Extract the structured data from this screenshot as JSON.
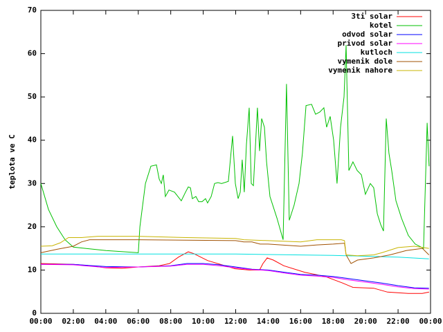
{
  "chart_data": {
    "type": "line",
    "ylabel": "teplota ve C",
    "xlim": [
      0,
      24
    ],
    "xticks": [
      {
        "value": 0,
        "label": "00:00"
      },
      {
        "value": 2,
        "label": "02:00"
      },
      {
        "value": 4,
        "label": "04:00"
      },
      {
        "value": 6,
        "label": "06:00"
      },
      {
        "value": 8,
        "label": "08:00"
      },
      {
        "value": 10,
        "label": "10:00"
      },
      {
        "value": 12,
        "label": "12:00"
      },
      {
        "value": 14,
        "label": "14:00"
      },
      {
        "value": 16,
        "label": "16:00"
      },
      {
        "value": 18,
        "label": "18:00"
      },
      {
        "value": 20,
        "label": "20:00"
      },
      {
        "value": 22,
        "label": "22:00"
      },
      {
        "value": 24,
        "label": "00:00"
      }
    ],
    "ylim": [
      0,
      70
    ],
    "yticks": [
      0,
      10,
      20,
      30,
      40,
      50,
      60,
      70
    ],
    "grid": false,
    "legend": "top-right",
    "series": [
      {
        "name": "3ti solar",
        "color": "#ff0000",
        "x": [
          0,
          2,
          3.02,
          4.01,
          5,
          6,
          7.29,
          7.93,
          8.48,
          9.08,
          9.42,
          10.27,
          11.34,
          11.98,
          12.83,
          13.47,
          13.68,
          13.94,
          14.32,
          14.96,
          16.24,
          17.52,
          18.58,
          19.22,
          20.5,
          21.35,
          22.63,
          23.49,
          23.91
        ],
        "values": [
          11.5,
          11.3,
          11,
          10.5,
          10.4,
          10.7,
          11,
          11.5,
          13,
          14.2,
          13.8,
          12.2,
          11,
          10.3,
          10,
          10,
          11.5,
          12.8,
          12.3,
          11,
          9.5,
          8.5,
          7,
          6,
          5.8,
          4.9,
          4.6,
          4.6,
          4.9
        ]
      },
      {
        "name": "kotel",
        "color": "#00c000",
        "x": [
          0,
          0.47,
          0.98,
          1.49,
          2,
          4.01,
          6,
          6.1,
          6.44,
          6.78,
          7.12,
          7.29,
          7.42,
          7.54,
          7.67,
          7.89,
          8.23,
          8.44,
          8.65,
          8.91,
          9.08,
          9.21,
          9.33,
          9.55,
          9.72,
          9.93,
          10.14,
          10.27,
          10.49,
          10.7,
          10.91,
          11.13,
          11.55,
          11.81,
          11.98,
          12.15,
          12.28,
          12.4,
          12.53,
          12.66,
          12.83,
          12.96,
          13.09,
          13.34,
          13.47,
          13.6,
          13.77,
          13.9,
          14.11,
          14.54,
          14.92,
          15.13,
          15.3,
          15.6,
          15.9,
          16.11,
          16.33,
          16.67,
          16.92,
          17.18,
          17.43,
          17.6,
          17.82,
          18.03,
          18.24,
          18.46,
          18.67,
          18.8,
          18.97,
          19.22,
          19.48,
          19.74,
          19.99,
          20.29,
          20.5,
          20.72,
          20.93,
          21.1,
          21.27,
          21.44,
          21.61,
          21.87,
          22.21,
          22.63,
          23.06,
          23.57,
          23.79,
          23.91
        ],
        "values": [
          30,
          24,
          20,
          17,
          15.3,
          14.5,
          14,
          20,
          30,
          34,
          34.3,
          31,
          30,
          32,
          27,
          28.5,
          28,
          27,
          26,
          28,
          29.2,
          29,
          26.5,
          27,
          25.8,
          25.8,
          26.5,
          25.5,
          27,
          30,
          30.2,
          30,
          30.5,
          41,
          30,
          26.5,
          28,
          35.5,
          28,
          39,
          47.5,
          30,
          29.5,
          47.5,
          37.5,
          45,
          43,
          35,
          27,
          22,
          17,
          53,
          21.5,
          25,
          30,
          37,
          48,
          48.3,
          46,
          46.5,
          47.5,
          43,
          45.5,
          40,
          30,
          43,
          50,
          62,
          33,
          35,
          33,
          32,
          27.5,
          30,
          29,
          23,
          20.5,
          19,
          45,
          37,
          33,
          26,
          22,
          18,
          16,
          15,
          44,
          34
        ]
      },
      {
        "name": "odvod solar",
        "color": "#0000ff",
        "x": [
          0,
          2,
          4,
          6,
          8,
          9,
          10,
          11,
          12,
          13,
          14,
          15,
          16,
          17,
          18,
          19,
          20,
          21,
          22,
          23,
          23.9
        ],
        "values": [
          11.3,
          11.3,
          10.8,
          10.7,
          11,
          11.5,
          11.5,
          11.2,
          10.7,
          10.2,
          10,
          9.5,
          9,
          8.8,
          8.5,
          8,
          7.5,
          7,
          6.4,
          5.9,
          5.8
        ]
      },
      {
        "name": "privod solar",
        "color": "#ff00ff",
        "x": [
          0,
          2,
          4,
          6,
          8,
          9,
          10,
          11,
          12,
          13,
          14,
          15,
          16,
          17,
          18,
          19,
          20,
          21,
          22,
          23,
          23.9
        ],
        "values": [
          11.3,
          11.2,
          10.6,
          10.7,
          10.9,
          11.3,
          11.3,
          11,
          10.5,
          10.1,
          9.9,
          9.3,
          8.8,
          8.6,
          8.3,
          7.7,
          7.2,
          6.7,
          6.1,
          5.7,
          5.6
        ]
      },
      {
        "name": "kutloch",
        "color": "#00e0e0",
        "x": [
          0,
          6,
          12,
          18,
          22,
          23.9
        ],
        "values": [
          13.7,
          13.7,
          13.7,
          13.4,
          13,
          12.6
        ]
      },
      {
        "name": "vymenik dole",
        "color": "#a05000",
        "x": [
          0,
          1,
          2,
          2.5,
          3,
          6,
          12,
          12.5,
          13,
          13.5,
          14,
          16,
          17,
          18,
          18.7,
          18.8,
          19.1,
          19.5,
          20.5,
          21.5,
          22.5,
          23.5,
          23.9
        ],
        "values": [
          14,
          14.8,
          15.5,
          16.5,
          17,
          17,
          16.8,
          16.5,
          16.5,
          16,
          16,
          15.5,
          15.8,
          16,
          16.2,
          13.5,
          11.5,
          12.3,
          12.8,
          13.5,
          14.5,
          15,
          13.5
        ]
      },
      {
        "name": "vymenik nahore",
        "color": "#c8b400",
        "x": [
          0,
          0.7,
          1.2,
          1.7,
          2.5,
          3.5,
          6,
          9,
          12,
          12.5,
          14,
          16,
          17,
          18.5,
          18.7,
          18.8,
          19.5,
          20.5,
          21,
          22,
          23,
          23.9
        ],
        "values": [
          15.5,
          15.6,
          16.3,
          17.5,
          17.5,
          17.8,
          17.8,
          17.5,
          17.3,
          17,
          16.8,
          16.5,
          17,
          17,
          16.8,
          13.5,
          13.3,
          13.5,
          14,
          15.2,
          15.5,
          15
        ]
      }
    ]
  }
}
